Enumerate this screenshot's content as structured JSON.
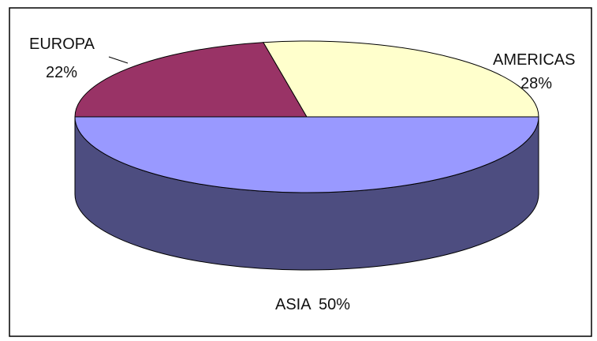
{
  "chart_data": {
    "type": "pie",
    "style": "3d",
    "slices": [
      {
        "name": "EUROPA",
        "value": 22,
        "percent_label": "22%",
        "color": "#993366",
        "side_color": "#7a2850"
      },
      {
        "name": "AMERICAS",
        "value": 28,
        "percent_label": "28%",
        "color": "#ffffcc",
        "side_color": "#ccc9a0"
      },
      {
        "name": "ASIA",
        "value": 50,
        "percent_label": "50%",
        "color": "#9999ff",
        "side_color": "#4d4d80"
      }
    ],
    "labels": {
      "europa": {
        "name": "EUROPA",
        "pct": "22%"
      },
      "americas": {
        "name": "AMERICAS",
        "pct": "28%"
      },
      "asia": {
        "name": "ASIA",
        "pct": "50%"
      }
    },
    "legend": "none",
    "border_color": "#000000"
  }
}
